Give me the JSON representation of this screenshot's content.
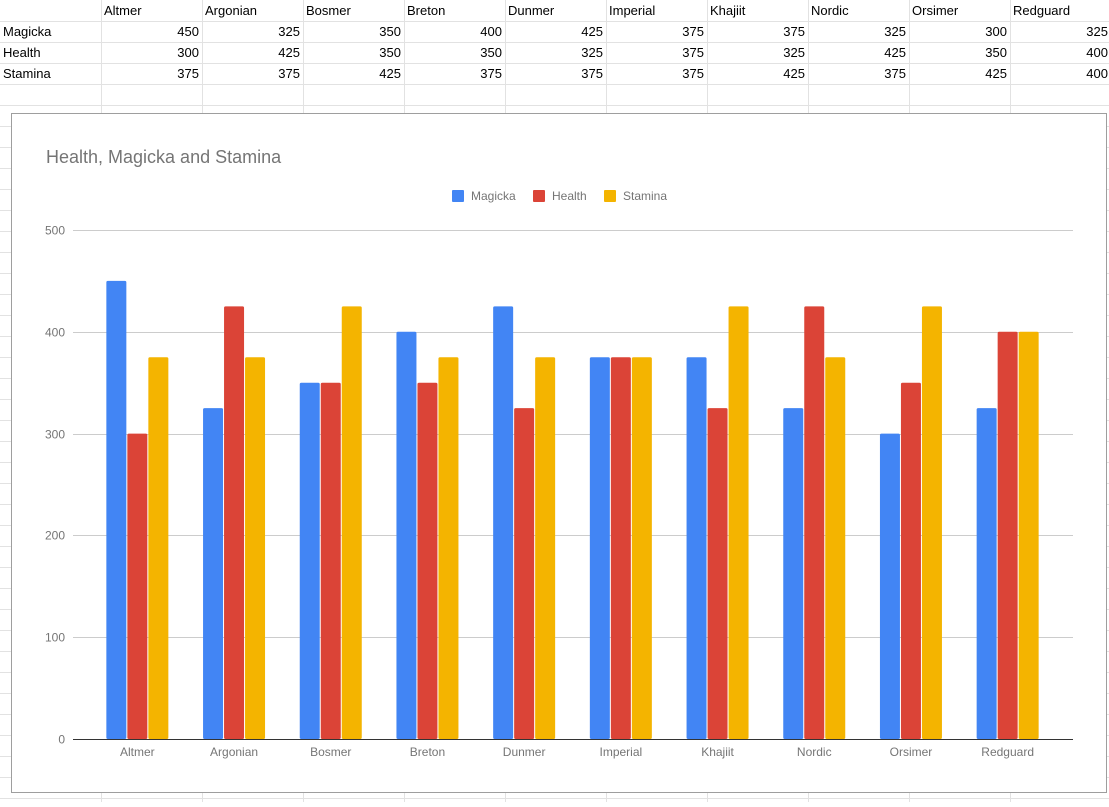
{
  "sheet": {
    "columns": [
      "Altmer",
      "Argonian",
      "Bosmer",
      "Breton",
      "Dunmer",
      "Imperial",
      "Khajiit",
      "Nordic",
      "Orsimer",
      "Redguard"
    ],
    "rows": [
      {
        "label": "Magicka",
        "values": [
          450,
          325,
          350,
          400,
          425,
          375,
          375,
          325,
          300,
          325
        ]
      },
      {
        "label": "Health",
        "values": [
          300,
          425,
          350,
          350,
          325,
          375,
          325,
          425,
          350,
          400
        ]
      },
      {
        "label": "Stamina",
        "values": [
          375,
          375,
          425,
          375,
          375,
          375,
          425,
          375,
          425,
          400
        ]
      }
    ]
  },
  "chart_data": {
    "type": "bar",
    "title": "Health, Magicka and Stamina",
    "categories": [
      "Altmer",
      "Argonian",
      "Bosmer",
      "Breton",
      "Dunmer",
      "Imperial",
      "Khajiit",
      "Nordic",
      "Orsimer",
      "Redguard"
    ],
    "series": [
      {
        "name": "Magicka",
        "color": "#4285f4",
        "values": [
          450,
          325,
          350,
          400,
          425,
          375,
          375,
          325,
          300,
          325
        ]
      },
      {
        "name": "Health",
        "color": "#db4437",
        "values": [
          300,
          425,
          350,
          350,
          325,
          375,
          325,
          425,
          350,
          400
        ]
      },
      {
        "name": "Stamina",
        "color": "#f4b400",
        "values": [
          375,
          375,
          425,
          375,
          375,
          375,
          425,
          375,
          425,
          400
        ]
      }
    ],
    "yticks": [
      "0",
      "100",
      "200",
      "300",
      "400",
      "500"
    ],
    "ylim": [
      0,
      500
    ],
    "xlabel": "",
    "ylabel": "",
    "legend": "top-center",
    "grid": true
  }
}
